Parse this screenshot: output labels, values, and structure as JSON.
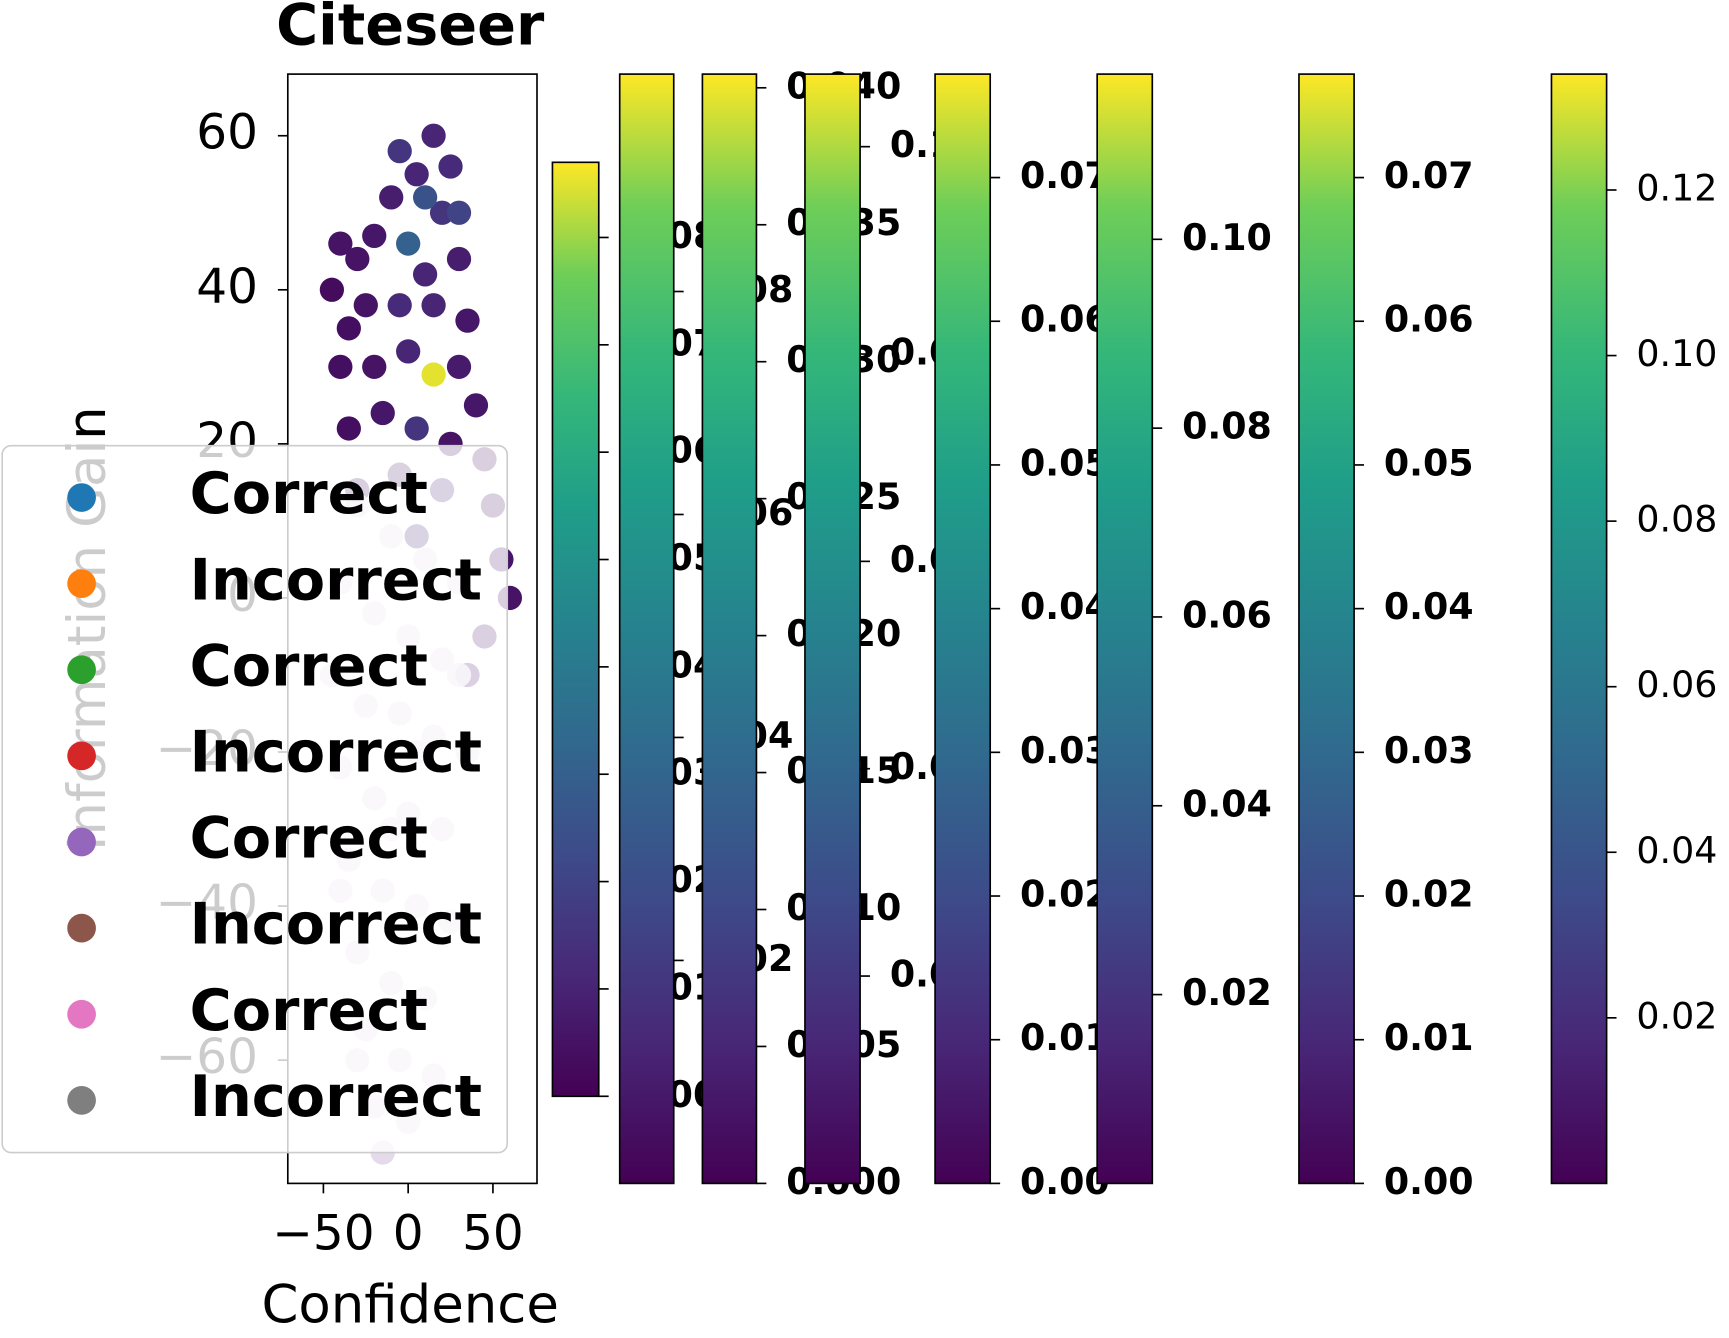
{
  "chart_data": [
    {
      "type": "scatter",
      "title": "Citeseer",
      "x_label": "Confidence",
      "y_label": "Information Gain",
      "xlim": [
        -71,
        76
      ],
      "ylim": [
        -76,
        68
      ],
      "xticks": [
        {
          "value": -50,
          "label": "−50"
        },
        0,
        50
      ],
      "yticks": [
        {
          "value": -60,
          "label": "−60"
        },
        {
          "value": -40,
          "label": "−40"
        },
        {
          "value": -20,
          "label": "−20"
        },
        0,
        20,
        40,
        60
      ],
      "points": {
        "x": [
          15,
          25,
          5,
          -10,
          20,
          -20,
          -40,
          -30,
          0,
          10,
          30,
          -35,
          -25,
          -5,
          15,
          35,
          -40,
          -20,
          0,
          15,
          30,
          40,
          -35,
          -15,
          5,
          25,
          45,
          -30,
          -5,
          20,
          50,
          55,
          60,
          45,
          35,
          30,
          -5,
          10,
          -45,
          5
        ],
        "y": [
          60,
          56,
          55,
          52,
          50,
          47,
          46,
          44,
          46,
          42,
          44,
          35,
          38,
          38,
          38,
          36,
          30,
          30,
          32,
          29,
          30,
          25,
          22,
          24,
          22,
          20,
          18,
          14,
          16,
          14,
          12,
          5,
          0,
          -5,
          -10,
          50,
          58,
          52,
          40,
          8
        ],
        "c": [
          0.01,
          0.012,
          0.01,
          0.008,
          0.015,
          0.006,
          0.005,
          0.005,
          0.03,
          0.01,
          0.008,
          0.004,
          0.005,
          0.012,
          0.01,
          0.006,
          0.004,
          0.005,
          0.01,
          0.085,
          0.007,
          0.006,
          0.004,
          0.006,
          0.015,
          0.005,
          0.004,
          0.005,
          0.007,
          0.01,
          0.004,
          0.005,
          0.005,
          0.006,
          0.006,
          0.02,
          0.015,
          0.025,
          0.003,
          0.01
        ]
      },
      "overlay_points": {
        "color": "#e2d6e9",
        "x": [
          -30,
          -10,
          10,
          30,
          -40,
          -20,
          0,
          20,
          -45,
          -25,
          -5,
          15,
          35,
          -40,
          -20,
          0,
          20,
          -35,
          -15,
          5,
          25,
          -30,
          -10,
          10,
          -25,
          -5,
          15,
          -20,
          0,
          -15,
          -40,
          30,
          -30,
          5,
          -10
        ],
        "y": [
          12,
          8,
          5,
          2,
          2,
          -2,
          -5,
          -8,
          -10,
          -14,
          -15,
          -18,
          -20,
          -22,
          -26,
          -28,
          -30,
          -34,
          -38,
          -40,
          -42,
          -46,
          -50,
          -52,
          -56,
          -60,
          -62,
          -66,
          -68,
          -72,
          -38,
          -10,
          -60,
          -20,
          -30
        ]
      },
      "legend": [
        {
          "name": "Correct",
          "color": "#1f77b4"
        },
        {
          "name": "Incorrect",
          "color": "#ff7f0e"
        },
        {
          "name": "Correct",
          "color": "#2ca02c"
        },
        {
          "name": "Incorrect",
          "color": "#d62728"
        },
        {
          "name": "Correct",
          "color": "#9467bd"
        },
        {
          "name": "Incorrect",
          "color": "#8c564b"
        },
        {
          "name": "Correct",
          "color": "#e377c2"
        },
        {
          "name": "Incorrect",
          "color": "#7f7f7f"
        }
      ]
    },
    {
      "type": "colorbar",
      "font_weight": "bold",
      "lim": [
        0,
        0.087
      ],
      "ticks": [
        {
          "value": 0,
          "label": "0.00"
        },
        0.01,
        0.02,
        0.03,
        0.04,
        0.05,
        0.06,
        0.07,
        0.08
      ]
    },
    {
      "type": "colorbar",
      "font_weight": "bold",
      "lim": [
        0,
        0.0995
      ],
      "ticks": [
        0.02,
        0.04,
        0.06,
        0.08
      ]
    },
    {
      "type": "colorbar",
      "font_weight": "bold",
      "lim": [
        0,
        0.0405
      ],
      "ticks": [
        {
          "value": 0,
          "label": "0.000"
        },
        0.005,
        {
          "value": 0.01,
          "label": "0.010"
        },
        0.015,
        {
          "value": 0.02,
          "label": "0.020"
        },
        0.025,
        {
          "value": 0.03,
          "label": "0.030"
        },
        0.035,
        {
          "value": 0.04,
          "label": "0.040"
        }
      ]
    },
    {
      "type": "colorbar",
      "font_weight": "bold",
      "lim": [
        0,
        0.107
      ],
      "ticks": [
        0.02,
        0.04,
        0.06,
        0.08,
        {
          "value": 0.1,
          "label": "0.10"
        }
      ]
    },
    {
      "type": "colorbar",
      "font_weight": "bold",
      "lim": [
        0,
        0.0772
      ],
      "ticks": [
        {
          "value": 0,
          "label": "0.00"
        },
        0.01,
        0.02,
        0.03,
        0.04,
        0.05,
        0.06,
        0.07
      ]
    },
    {
      "type": "colorbar",
      "font_weight": "bold",
      "lim": [
        0,
        0.1175
      ],
      "ticks": [
        0.02,
        0.04,
        0.06,
        0.08,
        {
          "value": 0.1,
          "label": "0.10"
        }
      ]
    },
    {
      "type": "colorbar",
      "font_weight": "bold",
      "lim": [
        0,
        0.0772
      ],
      "ticks": [
        {
          "value": 0,
          "label": "0.00"
        },
        0.01,
        0.02,
        0.03,
        0.04,
        0.05,
        0.06,
        0.07
      ]
    },
    {
      "type": "colorbar",
      "font_weight": "normal",
      "lim": [
        0,
        0.134
      ],
      "ticks": [
        0.02,
        0.04,
        0.06,
        0.08,
        {
          "value": 0.1,
          "label": "0.10"
        },
        0.12
      ]
    }
  ]
}
